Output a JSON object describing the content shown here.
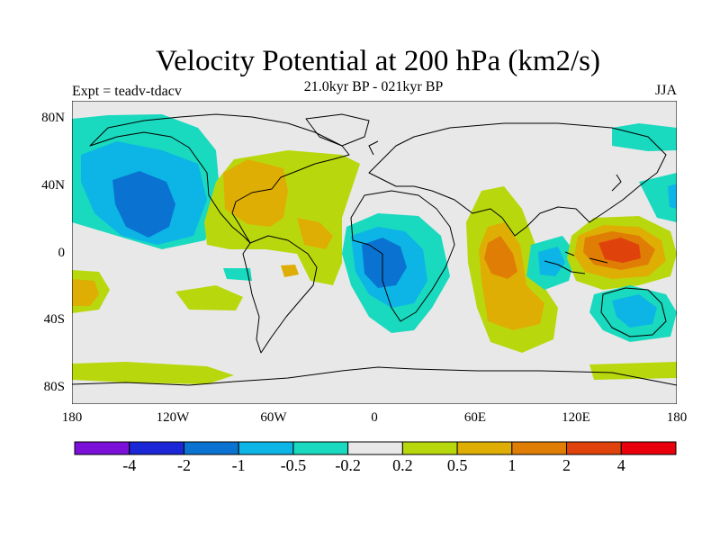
{
  "header": {
    "title": "Velocity Potential at 200 hPa (km2/s)",
    "subtitle": "21.0kyr BP - 021kyr BP",
    "left_label": "Expt = teadv-tdacv",
    "right_label": "JJA"
  },
  "map": {
    "projection": "cylindrical equidistant",
    "lat_ticks": [
      "80N",
      "40N",
      "0",
      "40S",
      "80S"
    ],
    "lon_ticks": [
      "180",
      "120W",
      "60W",
      "0",
      "60E",
      "120E",
      "180"
    ]
  },
  "colorbar": {
    "colors": [
      "#7b10d8",
      "#1b27d6",
      "#0a73d2",
      "#0cb5e6",
      "#19d9be",
      "#e8e8e8",
      "#b8d80d",
      "#deae05",
      "#e07d05",
      "#e0420c",
      "#e8000a"
    ],
    "labels": [
      "-4",
      "-2",
      "-1",
      "-0.5",
      "-0.2",
      "0.2",
      "0.5",
      "1",
      "2",
      "4"
    ]
  }
}
